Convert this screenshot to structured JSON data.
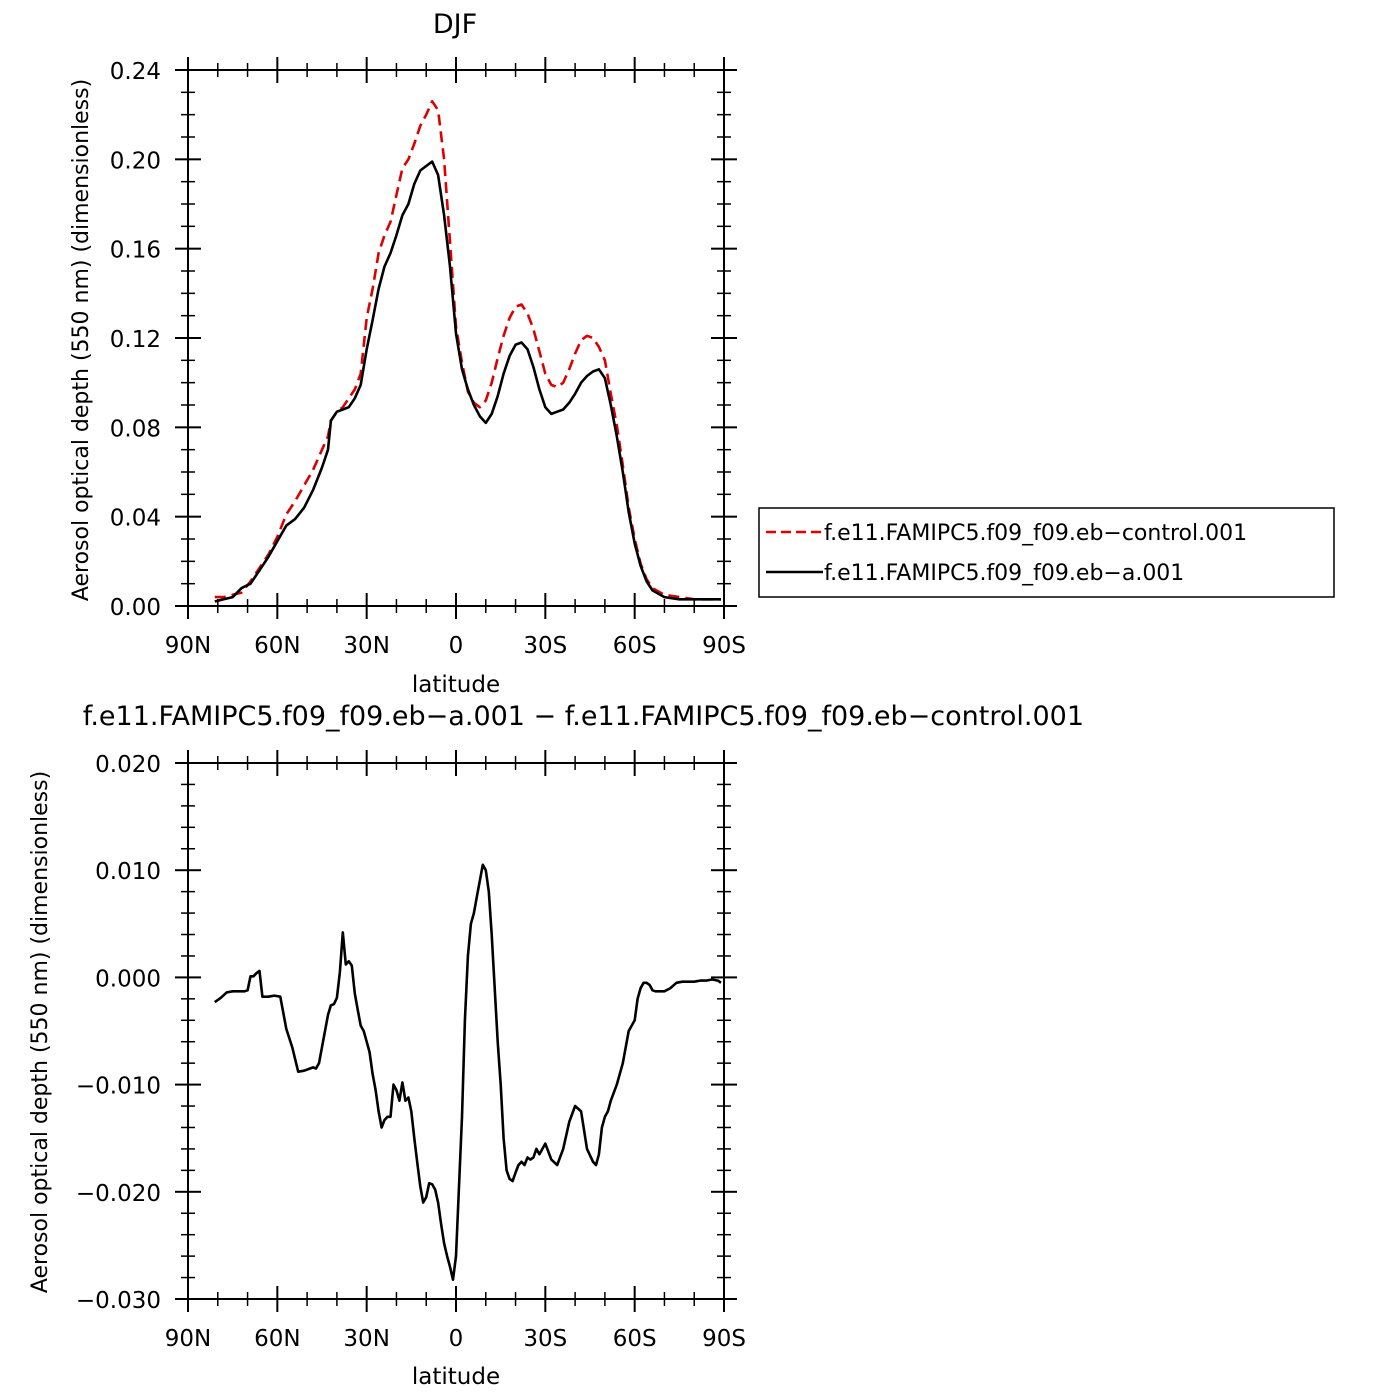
{
  "figure": {
    "panels": [
      {
        "title": "DJF",
        "ylabel": "Aerosol optical depth (550 nm) (dimensionless)",
        "xlabel": "latitude"
      },
      {
        "title": "f.e11.FAMIPC5.f09_f09.eb−a.001 − f.e11.FAMIPC5.f09_f09.eb−control.001",
        "ylabel": "Aerosol optical depth (550 nm) (dimensionless)",
        "xlabel": "latitude"
      }
    ],
    "legend": [
      {
        "label": "f.e11.FAMIPC5.f09_f09.eb−control.001",
        "color": "#dd0000",
        "dash": "dashed"
      },
      {
        "label": "f.e11.FAMIPC5.f09_f09.eb−a.001",
        "color": "#000000",
        "dash": "solid"
      }
    ]
  },
  "chart_data": [
    {
      "type": "line",
      "title": "DJF",
      "xlabel": "latitude",
      "ylabel": "Aerosol optical depth (550 nm) (dimensionless)",
      "xlim": [
        -90,
        90
      ],
      "ylim": [
        0,
        0.24
      ],
      "x_ticks": [
        -90,
        -60,
        -30,
        0,
        30,
        60,
        90
      ],
      "x_tick_labels": [
        "90N",
        "60N",
        "30N",
        "0",
        "30S",
        "60S",
        "90S"
      ],
      "y_ticks": [
        0,
        0.04,
        0.08,
        0.12,
        0.16,
        0.2,
        0.24
      ],
      "y_tick_labels": [
        "0.00",
        "0.04",
        "0.08",
        "0.12",
        "0.16",
        "0.20",
        "0.24"
      ],
      "grid": false,
      "legend_position": "right",
      "series": [
        {
          "name": "f.e11.FAMIPC5.f09_f09.eb−control.001",
          "color": "#dd0000",
          "dash": "dashed",
          "x": [
            -81,
            -78,
            -75,
            -72,
            -69,
            -66,
            -63,
            -60,
            -57,
            -54,
            -51,
            -48,
            -45,
            -43,
            -42,
            -40,
            -38,
            -36,
            -34,
            -32,
            -30,
            -28,
            -26,
            -24,
            -22,
            -20,
            -18,
            -16,
            -14,
            -12,
            -10,
            -8,
            -6,
            -4,
            -2,
            0,
            2,
            4,
            6,
            8,
            10,
            12,
            14,
            16,
            18,
            20,
            22,
            24,
            26,
            28,
            30,
            32,
            34,
            36,
            38,
            40,
            42,
            44,
            46,
            48,
            50,
            52,
            54,
            56,
            58,
            60,
            62,
            64,
            66,
            70,
            75,
            80,
            85,
            89
          ],
          "y": [
            0.004,
            0.004,
            0.005,
            0.006,
            0.011,
            0.017,
            0.023,
            0.031,
            0.041,
            0.047,
            0.054,
            0.061,
            0.07,
            0.076,
            0.083,
            0.087,
            0.089,
            0.093,
            0.097,
            0.104,
            0.129,
            0.142,
            0.158,
            0.166,
            0.172,
            0.184,
            0.196,
            0.2,
            0.207,
            0.215,
            0.22,
            0.226,
            0.222,
            0.2,
            0.163,
            0.125,
            0.109,
            0.096,
            0.091,
            0.089,
            0.092,
            0.1,
            0.111,
            0.121,
            0.129,
            0.134,
            0.135,
            0.131,
            0.124,
            0.114,
            0.104,
            0.099,
            0.098,
            0.1,
            0.106,
            0.113,
            0.119,
            0.121,
            0.12,
            0.116,
            0.11,
            0.095,
            0.081,
            0.063,
            0.044,
            0.03,
            0.019,
            0.012,
            0.008,
            0.005,
            0.004,
            0.003,
            0.003,
            0.003
          ]
        },
        {
          "name": "f.e11.FAMIPC5.f09_f09.eb−a.001",
          "color": "#000000",
          "dash": "solid",
          "x": [
            -81,
            -78,
            -75,
            -72,
            -69,
            -66,
            -63,
            -60,
            -57,
            -54,
            -51,
            -48,
            -45,
            -43,
            -42,
            -40,
            -38,
            -36,
            -34,
            -32,
            -30,
            -28,
            -26,
            -24,
            -22,
            -20,
            -18,
            -16,
            -14,
            -12,
            -10,
            -8,
            -6,
            -4,
            -2,
            0,
            2,
            4,
            6,
            8,
            10,
            12,
            14,
            16,
            18,
            20,
            22,
            24,
            26,
            28,
            30,
            32,
            34,
            36,
            38,
            40,
            42,
            44,
            46,
            48,
            50,
            52,
            54,
            56,
            58,
            60,
            62,
            64,
            66,
            70,
            75,
            80,
            85,
            89
          ],
          "y": [
            0.002,
            0.003,
            0.004,
            0.008,
            0.01,
            0.016,
            0.022,
            0.029,
            0.036,
            0.039,
            0.044,
            0.052,
            0.062,
            0.07,
            0.083,
            0.087,
            0.088,
            0.089,
            0.093,
            0.099,
            0.115,
            0.128,
            0.142,
            0.152,
            0.158,
            0.166,
            0.175,
            0.18,
            0.189,
            0.195,
            0.197,
            0.199,
            0.193,
            0.175,
            0.152,
            0.122,
            0.106,
            0.097,
            0.09,
            0.085,
            0.082,
            0.086,
            0.094,
            0.104,
            0.112,
            0.117,
            0.118,
            0.115,
            0.107,
            0.097,
            0.089,
            0.086,
            0.087,
            0.088,
            0.091,
            0.095,
            0.1,
            0.103,
            0.105,
            0.106,
            0.102,
            0.09,
            0.076,
            0.06,
            0.042,
            0.028,
            0.018,
            0.011,
            0.007,
            0.004,
            0.003,
            0.003,
            0.003,
            0.003
          ]
        }
      ]
    },
    {
      "type": "line",
      "title": "f.e11.FAMIPC5.f09_f09.eb−a.001 − f.e11.FAMIPC5.f09_f09.eb−control.001",
      "xlabel": "latitude",
      "ylabel": "Aerosol optical depth (550 nm) (dimensionless)",
      "xlim": [
        -90,
        90
      ],
      "ylim": [
        -0.03,
        0.02
      ],
      "x_ticks": [
        -90,
        -60,
        -30,
        0,
        30,
        60,
        90
      ],
      "x_tick_labels": [
        "90N",
        "60N",
        "30N",
        "0",
        "30S",
        "60S",
        "90S"
      ],
      "y_ticks": [
        -0.03,
        -0.02,
        -0.01,
        0,
        0.01,
        0.02
      ],
      "y_tick_labels": [
        "−0.030",
        "−0.020",
        "−0.010",
        "0.000",
        "0.010",
        "0.020"
      ],
      "grid": false,
      "series": [
        {
          "color": "#000000",
          "dash": "solid",
          "x": [
            -81,
            -79,
            -77,
            -75,
            -73,
            -72,
            -71,
            -70,
            -69,
            -68,
            -67,
            -66,
            -65,
            -63,
            -61,
            -59,
            -57,
            -55,
            -53,
            -51,
            -49,
            -48,
            -47,
            -46,
            -45,
            -44,
            -43,
            -42,
            -41,
            -40,
            -39,
            -38,
            -37,
            -36,
            -35,
            -34,
            -33,
            -32,
            -31,
            -30,
            -29,
            -28,
            -27,
            -26,
            -25,
            -24,
            -23,
            -22,
            -21,
            -20,
            -19,
            -18,
            -17,
            -16,
            -15,
            -14,
            -13,
            -12,
            -11,
            -10,
            -9,
            -8,
            -7,
            -6,
            -5,
            -4,
            -3,
            -2,
            -1,
            0,
            1,
            2,
            3,
            4,
            5,
            6,
            7,
            8,
            9,
            10,
            11,
            12,
            13,
            14,
            15,
            16,
            17,
            18,
            19,
            20,
            21,
            22,
            23,
            24,
            25,
            26,
            27,
            28,
            30,
            32,
            34,
            36,
            38,
            40,
            42,
            44,
            46,
            47,
            48,
            49,
            50,
            51,
            52,
            54,
            56,
            58,
            60,
            61,
            62,
            63,
            64,
            65,
            66,
            67,
            68,
            70,
            72,
            74,
            76,
            78,
            80,
            82,
            84,
            86,
            88,
            89
          ],
          "y": [
            -0.0023,
            -0.0019,
            -0.0014,
            -0.0013,
            -0.0013,
            -0.0013,
            -0.0013,
            -0.0012,
            0.0001,
            0.0001,
            0.0004,
            0.0006,
            -0.0018,
            -0.0018,
            -0.0017,
            -0.0018,
            -0.0048,
            -0.0065,
            -0.0088,
            -0.0087,
            -0.0085,
            -0.0084,
            -0.0085,
            -0.008,
            -0.0065,
            -0.005,
            -0.0035,
            -0.0026,
            -0.0025,
            -0.0019,
            0.0005,
            0.0042,
            0.0012,
            0.0015,
            0.0011,
            -0.0015,
            -0.003,
            -0.0045,
            -0.005,
            -0.006,
            -0.007,
            -0.009,
            -0.0105,
            -0.0125,
            -0.014,
            -0.0133,
            -0.013,
            -0.013,
            -0.01,
            -0.0105,
            -0.0115,
            -0.0098,
            -0.0115,
            -0.0112,
            -0.0125,
            -0.015,
            -0.0173,
            -0.0195,
            -0.021,
            -0.0205,
            -0.0192,
            -0.0193,
            -0.0198,
            -0.021,
            -0.023,
            -0.0248,
            -0.026,
            -0.027,
            -0.0282,
            -0.026,
            -0.0195,
            -0.013,
            -0.004,
            0.002,
            0.005,
            0.006,
            0.0075,
            0.009,
            0.0105,
            0.01,
            0.008,
            0.004,
            -0.001,
            -0.006,
            -0.01,
            -0.015,
            -0.018,
            -0.0188,
            -0.019,
            -0.0182,
            -0.0175,
            -0.0172,
            -0.0175,
            -0.0168,
            -0.017,
            -0.0168,
            -0.016,
            -0.0165,
            -0.0155,
            -0.017,
            -0.0175,
            -0.016,
            -0.0135,
            -0.012,
            -0.0125,
            -0.016,
            -0.0172,
            -0.0175,
            -0.0165,
            -0.014,
            -0.013,
            -0.0125,
            -0.0115,
            -0.01,
            -0.008,
            -0.005,
            -0.004,
            -0.002,
            -0.001,
            -0.0005,
            -0.0005,
            -0.0007,
            -0.0012,
            -0.0013,
            -0.0013,
            -0.0013,
            -0.001,
            -0.0005,
            -0.0004,
            -0.0004,
            -0.0004,
            -0.0003,
            -0.0003,
            -0.0002,
            -0.0003,
            -0.0005
          ]
        }
      ]
    }
  ]
}
